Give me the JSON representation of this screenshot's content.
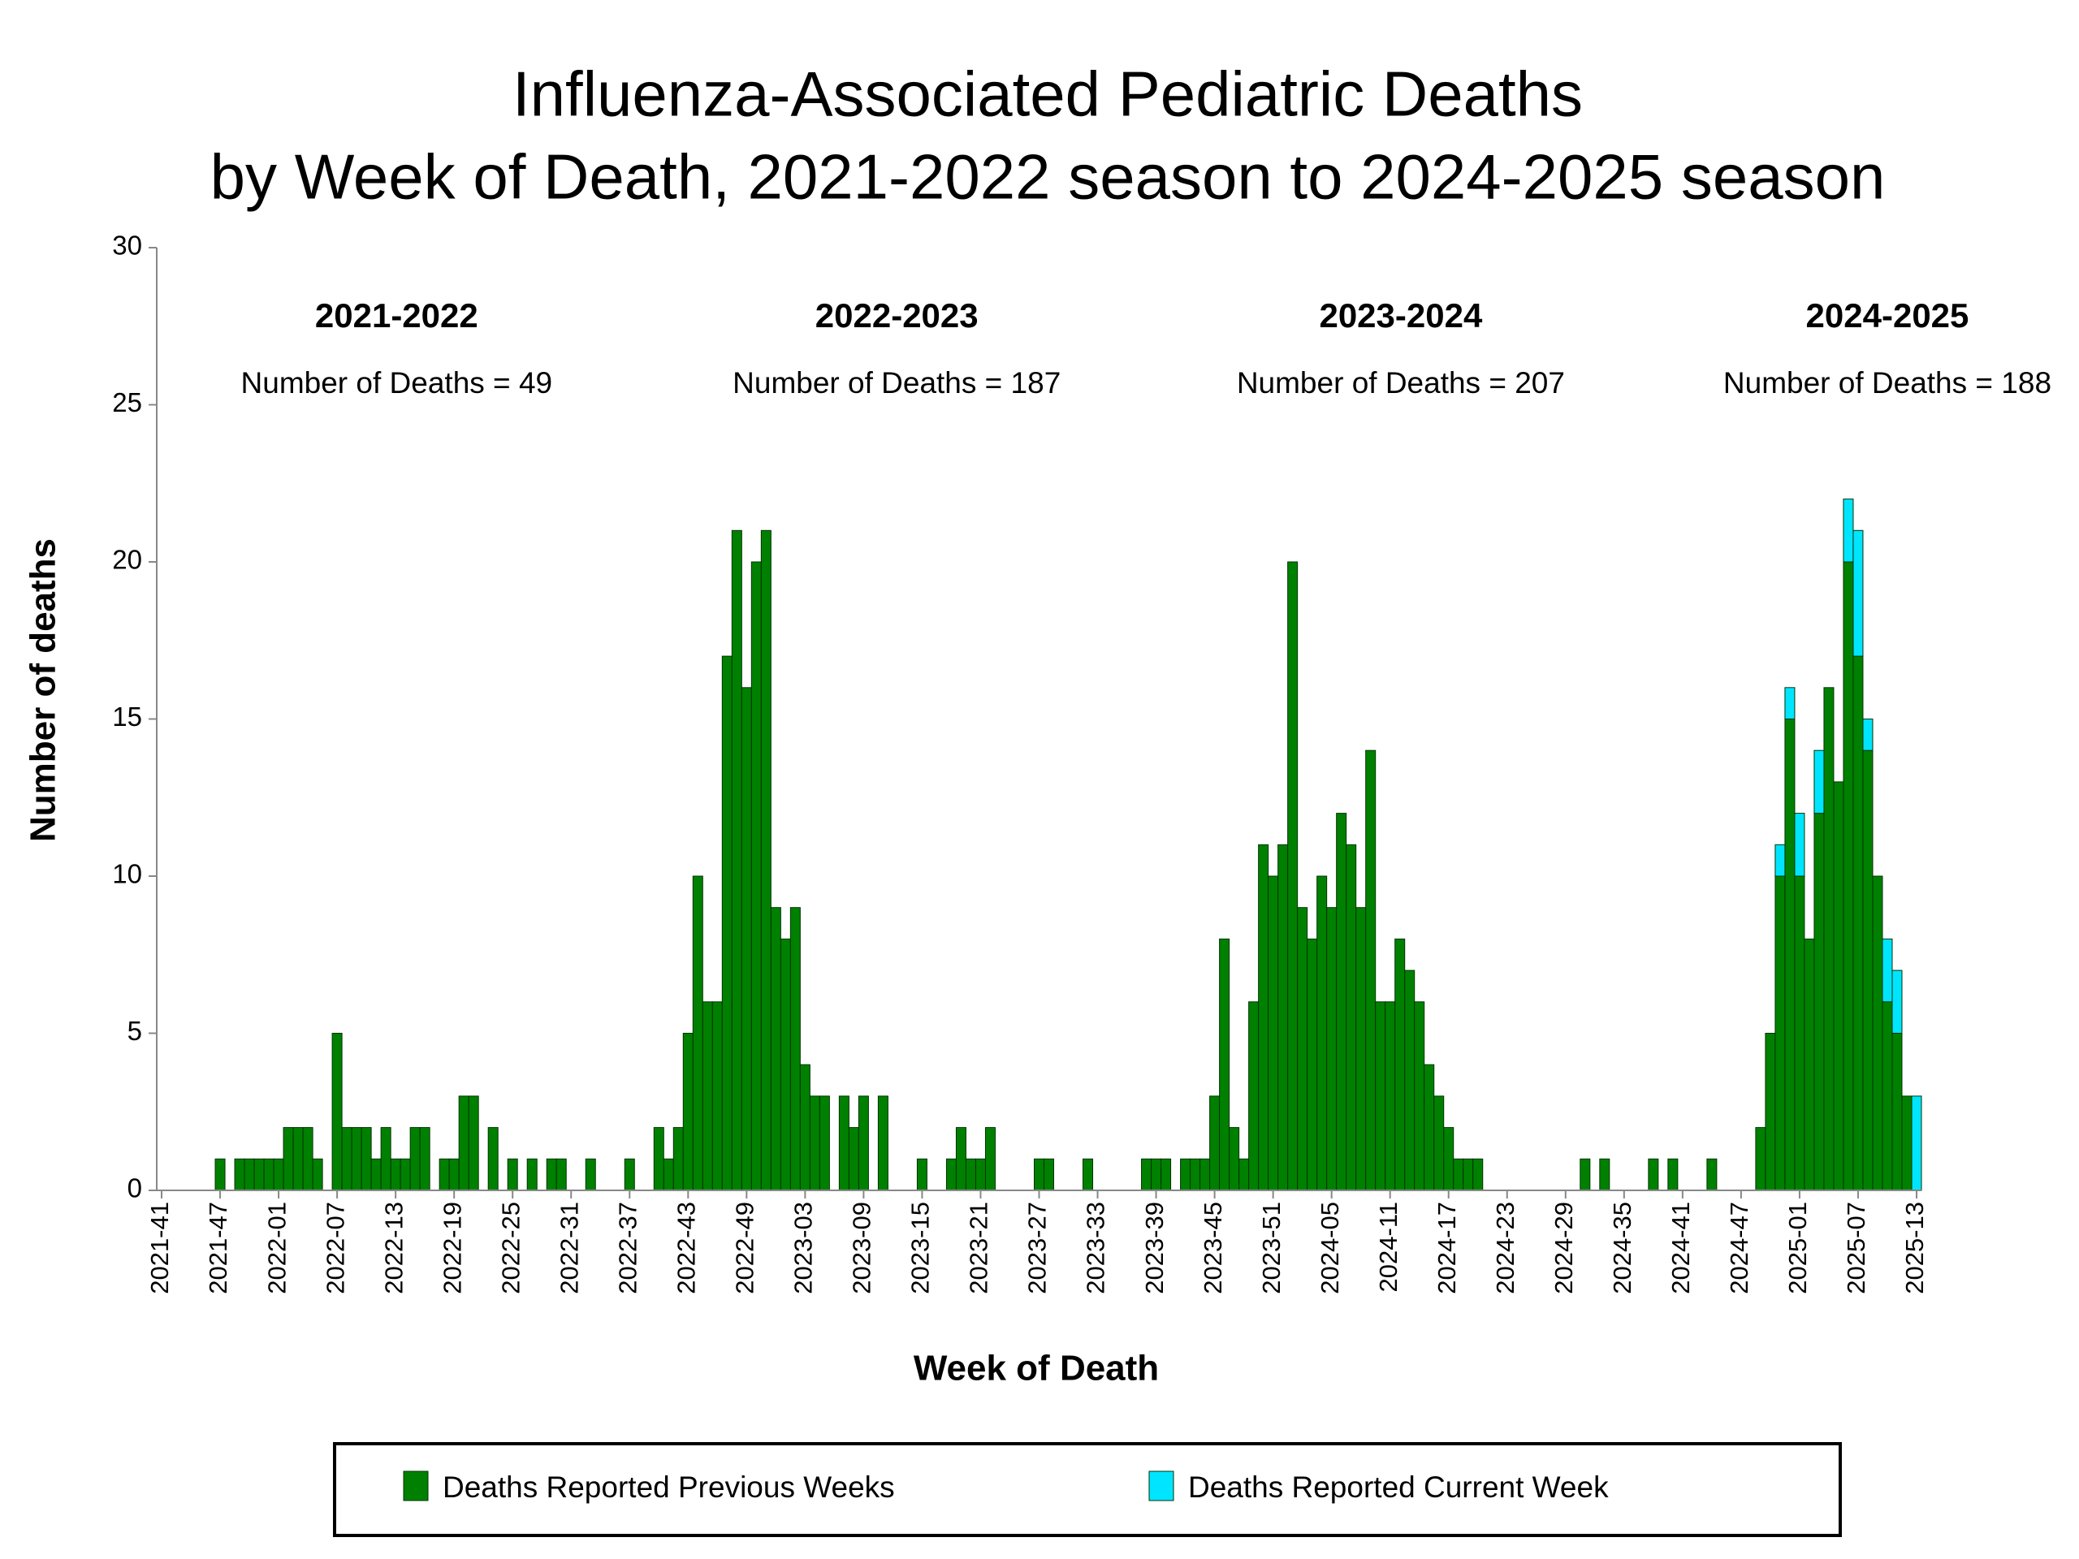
{
  "chart_data": {
    "type": "bar",
    "stacked": true,
    "title": [
      "Influenza-Associated Pediatric Deaths",
      "by Week of Death, 2021-2022 season to 2024-2025 season"
    ],
    "x_label": "Week of Death",
    "y_label": "Number of deaths",
    "ylim": [
      0,
      30
    ],
    "yticks": [
      0,
      5,
      10,
      15,
      20,
      25,
      30
    ],
    "grid": false,
    "legend": "bottom",
    "annotations": [
      {
        "title": "2021-2022",
        "text": "Number of Deaths = 49"
      },
      {
        "title": "2022-2023",
        "text": "Number of Deaths = 187"
      },
      {
        "title": "2023-2024",
        "text": "Number of Deaths = 207"
      },
      {
        "title": "2024-2025",
        "text": "Number of Deaths = 188"
      }
    ],
    "categories": [
      "2021-41",
      null,
      null,
      null,
      null,
      null,
      "2021-47",
      null,
      null,
      null,
      null,
      null,
      "2022-01",
      null,
      null,
      null,
      null,
      null,
      "2022-07",
      null,
      null,
      null,
      null,
      null,
      "2022-13",
      null,
      null,
      null,
      null,
      null,
      "2022-19",
      null,
      null,
      null,
      null,
      null,
      "2022-25",
      null,
      null,
      null,
      null,
      null,
      "2022-31",
      null,
      null,
      null,
      null,
      null,
      "2022-37",
      null,
      null,
      null,
      null,
      null,
      "2022-43",
      null,
      null,
      null,
      null,
      null,
      "2022-49",
      null,
      null,
      null,
      null,
      null,
      "2023-03",
      null,
      null,
      null,
      null,
      null,
      "2023-09",
      null,
      null,
      null,
      null,
      null,
      "2023-15",
      null,
      null,
      null,
      null,
      null,
      "2023-21",
      null,
      null,
      null,
      null,
      null,
      "2023-27",
      null,
      null,
      null,
      null,
      null,
      "2023-33",
      null,
      null,
      null,
      null,
      null,
      "2023-39",
      null,
      null,
      null,
      null,
      null,
      "2023-45",
      null,
      null,
      null,
      null,
      null,
      "2023-51",
      null,
      null,
      null,
      null,
      null,
      "2024-05",
      null,
      null,
      null,
      null,
      null,
      "2024-11",
      null,
      null,
      null,
      null,
      null,
      "2024-17",
      null,
      null,
      null,
      null,
      null,
      "2024-23",
      null,
      null,
      null,
      null,
      null,
      "2024-29",
      null,
      null,
      null,
      null,
      null,
      "2024-35",
      null,
      null,
      null,
      null,
      null,
      "2024-41",
      null,
      null,
      null,
      null,
      null,
      "2024-47",
      null,
      null,
      null,
      null,
      null,
      "2025-01",
      null,
      null,
      null,
      null,
      null,
      "2025-07",
      null,
      null,
      null,
      null,
      null,
      "2025-13"
    ],
    "series": [
      {
        "name": "Deaths Reported Previous Weeks",
        "color": "#008000",
        "values": [
          0,
          0,
          0,
          0,
          0,
          0,
          1,
          0,
          1,
          1,
          1,
          1,
          1,
          2,
          2,
          2,
          1,
          0,
          5,
          2,
          2,
          2,
          1,
          2,
          1,
          1,
          2,
          2,
          0,
          1,
          1,
          3,
          3,
          0,
          2,
          0,
          1,
          0,
          1,
          0,
          1,
          1,
          0,
          0,
          1,
          0,
          0,
          0,
          1,
          0,
          0,
          2,
          1,
          2,
          5,
          10,
          6,
          6,
          17,
          21,
          16,
          20,
          21,
          9,
          8,
          9,
          4,
          3,
          3,
          0,
          3,
          2,
          3,
          0,
          3,
          0,
          0,
          0,
          1,
          0,
          0,
          1,
          2,
          1,
          1,
          2,
          0,
          0,
          0,
          0,
          1,
          1,
          0,
          0,
          0,
          1,
          0,
          0,
          0,
          0,
          0,
          1,
          1,
          1,
          0,
          1,
          1,
          1,
          3,
          8,
          2,
          1,
          6,
          11,
          10,
          11,
          20,
          9,
          8,
          10,
          9,
          12,
          11,
          9,
          14,
          6,
          6,
          8,
          7,
          6,
          4,
          3,
          2,
          1,
          1,
          1,
          0,
          0,
          0,
          0,
          0,
          0,
          0,
          0,
          0,
          0,
          1,
          0,
          1,
          0,
          0,
          0,
          0,
          1,
          0,
          1,
          0,
          0,
          0,
          1,
          0,
          0,
          0,
          0,
          2,
          5,
          10,
          15,
          10,
          8,
          12,
          16,
          13,
          20,
          17,
          14,
          10,
          6,
          5,
          3,
          0
        ]
      },
      {
        "name": "Deaths Reported Current Week",
        "color": "#00e5ff",
        "values": [
          0,
          0,
          0,
          0,
          0,
          0,
          0,
          0,
          0,
          0,
          0,
          0,
          0,
          0,
          0,
          0,
          0,
          0,
          0,
          0,
          0,
          0,
          0,
          0,
          0,
          0,
          0,
          0,
          0,
          0,
          0,
          0,
          0,
          0,
          0,
          0,
          0,
          0,
          0,
          0,
          0,
          0,
          0,
          0,
          0,
          0,
          0,
          0,
          0,
          0,
          0,
          0,
          0,
          0,
          0,
          0,
          0,
          0,
          0,
          0,
          0,
          0,
          0,
          0,
          0,
          0,
          0,
          0,
          0,
          0,
          0,
          0,
          0,
          0,
          0,
          0,
          0,
          0,
          0,
          0,
          0,
          0,
          0,
          0,
          0,
          0,
          0,
          0,
          0,
          0,
          0,
          0,
          0,
          0,
          0,
          0,
          0,
          0,
          0,
          0,
          0,
          0,
          0,
          0,
          0,
          0,
          0,
          0,
          0,
          0,
          0,
          0,
          0,
          0,
          0,
          0,
          0,
          0,
          0,
          0,
          0,
          0,
          0,
          0,
          0,
          0,
          0,
          0,
          0,
          0,
          0,
          0,
          0,
          0,
          0,
          0,
          0,
          0,
          0,
          0,
          0,
          0,
          0,
          0,
          0,
          0,
          0,
          0,
          0,
          0,
          0,
          0,
          0,
          0,
          0,
          0,
          0,
          0,
          0,
          0,
          0,
          0,
          0,
          0,
          0,
          0,
          1,
          1,
          2,
          0,
          2,
          0,
          0,
          2,
          4,
          1,
          0,
          2,
          2,
          0,
          3
        ]
      }
    ]
  }
}
